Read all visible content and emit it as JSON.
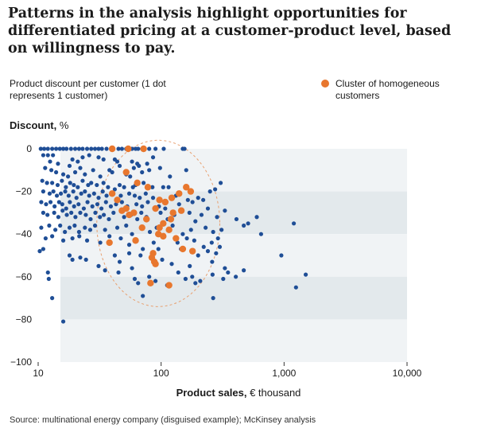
{
  "title": "Patterns in the analysis highlight opportunities for differentiated pricing at a customer-product level, based on willingness to pay.",
  "subtitle": "Product discount per customer (1 dot represents 1 customer)",
  "legend_label": "Cluster of homogeneous customers",
  "y_axis_title": "Discount,",
  "y_axis_unit": "%",
  "x_axis_title": "Product sales,",
  "x_axis_unit": "€ thousand",
  "source": "Source: multinational energy company (disguised example); McKinsey analysis",
  "colors": {
    "blue": "#1f4e96",
    "orange": "#e8772e",
    "band": "#e3e9ec",
    "band_light": "#f0f3f5",
    "ellipse": "#e8a070"
  },
  "chart_data": {
    "type": "scatter",
    "x_scale": "log",
    "xlim": [
      10,
      10000
    ],
    "ylim": [
      -100,
      0
    ],
    "x_ticks": [
      10,
      100,
      1000,
      10000
    ],
    "x_tick_labels": [
      "10",
      "100",
      "1,000",
      "10,000"
    ],
    "y_ticks": [
      0,
      -20,
      -40,
      -60,
      -80,
      -100
    ],
    "y_tick_labels": [
      "0",
      "−20",
      "−40",
      "−60",
      "−80",
      "−100"
    ],
    "series": [
      {
        "name": "Customers",
        "color": "#1f4e96",
        "points": [
          [
            10.5,
            0
          ],
          [
            11.2,
            0
          ],
          [
            12,
            0
          ],
          [
            13,
            0
          ],
          [
            14,
            0
          ],
          [
            15,
            0
          ],
          [
            16,
            0
          ],
          [
            17,
            0
          ],
          [
            18.5,
            0
          ],
          [
            20,
            0
          ],
          [
            21.5,
            0
          ],
          [
            23,
            0
          ],
          [
            25,
            0
          ],
          [
            27,
            0
          ],
          [
            29,
            0
          ],
          [
            31,
            0
          ],
          [
            33,
            0
          ],
          [
            36,
            0
          ],
          [
            45,
            0
          ],
          [
            48,
            0
          ],
          [
            52,
            0
          ],
          [
            55,
            0
          ],
          [
            58,
            0
          ],
          [
            62,
            0
          ],
          [
            65,
            0
          ],
          [
            70,
            0
          ],
          [
            80,
            0
          ],
          [
            90,
            0
          ],
          [
            105,
            0
          ],
          [
            150,
            0
          ],
          [
            155,
            0
          ],
          [
            11,
            -3
          ],
          [
            12,
            -3
          ],
          [
            13.2,
            -3
          ],
          [
            12.5,
            -6
          ],
          [
            14.5,
            -7
          ],
          [
            18,
            -8
          ],
          [
            21,
            -6
          ],
          [
            23,
            -4
          ],
          [
            19,
            -5
          ],
          [
            26,
            -3
          ],
          [
            31,
            -4
          ],
          [
            34,
            -5
          ],
          [
            42,
            -5
          ],
          [
            44,
            -6
          ],
          [
            58,
            -6
          ],
          [
            64,
            -7
          ],
          [
            66,
            -8
          ],
          [
            77,
            -7
          ],
          [
            86,
            -4
          ],
          [
            11.4,
            -9
          ],
          [
            12.8,
            -10
          ],
          [
            14,
            -11
          ],
          [
            16,
            -12
          ],
          [
            17.5,
            -13
          ],
          [
            20,
            -11
          ],
          [
            22,
            -9
          ],
          [
            24,
            -12
          ],
          [
            28,
            -10
          ],
          [
            32,
            -13
          ],
          [
            38,
            -10
          ],
          [
            40,
            -11
          ],
          [
            52,
            -12
          ],
          [
            56,
            -13
          ],
          [
            70,
            -11
          ],
          [
            98,
            -9
          ],
          [
            118,
            -13
          ],
          [
            160,
            -10
          ],
          [
            80,
            -10
          ],
          [
            60,
            -9
          ],
          [
            46,
            -8
          ],
          [
            10.8,
            -15
          ],
          [
            11.8,
            -16
          ],
          [
            13,
            -16
          ],
          [
            14.4,
            -17
          ],
          [
            15.6,
            -15
          ],
          [
            16.8,
            -18
          ],
          [
            18.2,
            -16
          ],
          [
            19.5,
            -17
          ],
          [
            21,
            -18
          ],
          [
            23,
            -15
          ],
          [
            25.5,
            -17
          ],
          [
            27,
            -16
          ],
          [
            30,
            -17
          ],
          [
            34,
            -16
          ],
          [
            37,
            -18
          ],
          [
            42,
            -19
          ],
          [
            46,
            -17
          ],
          [
            50,
            -18
          ],
          [
            59,
            -18
          ],
          [
            62,
            -17
          ],
          [
            72,
            -16
          ],
          [
            85,
            -18
          ],
          [
            104,
            -18
          ],
          [
            115,
            -18
          ],
          [
            11,
            -20
          ],
          [
            12.4,
            -21
          ],
          [
            13.3,
            -20
          ],
          [
            14.2,
            -22
          ],
          [
            15.3,
            -21
          ],
          [
            16.6,
            -20
          ],
          [
            17.7,
            -22
          ],
          [
            19.3,
            -20
          ],
          [
            20.5,
            -23
          ],
          [
            22.4,
            -21
          ],
          [
            24,
            -20
          ],
          [
            26,
            -22
          ],
          [
            28.5,
            -21
          ],
          [
            31,
            -23
          ],
          [
            33.5,
            -20
          ],
          [
            36,
            -22
          ],
          [
            40,
            -21
          ],
          [
            47,
            -22
          ],
          [
            55,
            -21
          ],
          [
            61,
            -22
          ],
          [
            67,
            -23
          ],
          [
            75,
            -21
          ],
          [
            86,
            -23
          ],
          [
            132,
            -22
          ],
          [
            10.6,
            -25
          ],
          [
            11.6,
            -26
          ],
          [
            12.6,
            -25
          ],
          [
            13.6,
            -27
          ],
          [
            14.8,
            -25
          ],
          [
            15.7,
            -26
          ],
          [
            16.9,
            -28
          ],
          [
            18.1,
            -25
          ],
          [
            19.6,
            -27
          ],
          [
            21.3,
            -26
          ],
          [
            23.5,
            -28
          ],
          [
            25.2,
            -25
          ],
          [
            27.6,
            -27
          ],
          [
            30.3,
            -26
          ],
          [
            32.7,
            -28
          ],
          [
            35.6,
            -25
          ],
          [
            39,
            -27
          ],
          [
            43,
            -26
          ],
          [
            48,
            -25
          ],
          [
            53,
            -27
          ],
          [
            63,
            -26
          ],
          [
            70,
            -27
          ],
          [
            78,
            -25
          ],
          [
            96,
            -27
          ],
          [
            108,
            -28
          ],
          [
            140,
            -26
          ],
          [
            165,
            -24
          ],
          [
            180,
            -25
          ],
          [
            200,
            -23
          ],
          [
            220,
            -24
          ],
          [
            250,
            -20
          ],
          [
            275,
            -19
          ],
          [
            305,
            -16
          ],
          [
            11,
            -30
          ],
          [
            11.9,
            -31
          ],
          [
            13.5,
            -30
          ],
          [
            14.6,
            -32
          ],
          [
            15.8,
            -29
          ],
          [
            17.1,
            -31
          ],
          [
            18.6,
            -30
          ],
          [
            20.1,
            -32
          ],
          [
            22,
            -30
          ],
          [
            24.4,
            -31
          ],
          [
            26.7,
            -33
          ],
          [
            29.2,
            -30
          ],
          [
            31.8,
            -32
          ],
          [
            34.2,
            -31
          ],
          [
            37.6,
            -33
          ],
          [
            41,
            -30
          ],
          [
            50,
            -32
          ],
          [
            57,
            -31
          ],
          [
            64,
            -33
          ],
          [
            69,
            -30
          ],
          [
            76,
            -32
          ],
          [
            99,
            -30
          ],
          [
            113,
            -33
          ],
          [
            128,
            -31
          ],
          [
            170,
            -30
          ],
          [
            190,
            -34
          ],
          [
            213,
            -31
          ],
          [
            240,
            -28
          ],
          [
            285,
            -32
          ],
          [
            330,
            -29
          ],
          [
            410,
            -33
          ],
          [
            600,
            -32
          ],
          [
            510,
            -35
          ],
          [
            10.6,
            -37
          ],
          [
            12.3,
            -36
          ],
          [
            13.8,
            -38
          ],
          [
            15.1,
            -36
          ],
          [
            16.5,
            -39
          ],
          [
            18,
            -37
          ],
          [
            19.8,
            -36
          ],
          [
            21.5,
            -39
          ],
          [
            24,
            -37
          ],
          [
            26.5,
            -38
          ],
          [
            29,
            -36
          ],
          [
            35,
            -38
          ],
          [
            44,
            -37
          ],
          [
            52,
            -36
          ],
          [
            58,
            -40
          ],
          [
            81,
            -39
          ],
          [
            92,
            -37
          ],
          [
            124,
            -36
          ],
          [
            150,
            -40
          ],
          [
            175,
            -38
          ],
          [
            230,
            -37
          ],
          [
            265,
            -39
          ],
          [
            310,
            -38
          ],
          [
            470,
            -36
          ],
          [
            650,
            -40
          ],
          [
            11.5,
            -42
          ],
          [
            13,
            -41
          ],
          [
            16,
            -43
          ],
          [
            19,
            -42
          ],
          [
            21.6,
            -41
          ],
          [
            25,
            -43
          ],
          [
            32,
            -44
          ],
          [
            38,
            -41
          ],
          [
            47,
            -42
          ],
          [
            55,
            -45
          ],
          [
            63,
            -43
          ],
          [
            71,
            -47
          ],
          [
            87,
            -44
          ],
          [
            136,
            -44
          ],
          [
            162,
            -42
          ],
          [
            186,
            -43
          ],
          [
            222,
            -46
          ],
          [
            258,
            -44
          ],
          [
            290,
            -42
          ],
          [
            1200,
            -35
          ],
          [
            10.3,
            -48
          ],
          [
            11,
            -47
          ],
          [
            42,
            -50
          ],
          [
            55,
            -49
          ],
          [
            68,
            -50
          ],
          [
            95,
            -47
          ],
          [
            145,
            -47
          ],
          [
            200,
            -50
          ],
          [
            240,
            -48
          ],
          [
            280,
            -49
          ],
          [
            300,
            -46
          ],
          [
            950,
            -50
          ],
          [
            18,
            -50
          ],
          [
            19,
            -52
          ],
          [
            22,
            -51
          ],
          [
            24.5,
            -52
          ],
          [
            31,
            -55
          ],
          [
            46,
            -53
          ],
          [
            58,
            -56
          ],
          [
            102,
            -52
          ],
          [
            122,
            -54
          ],
          [
            171,
            -55
          ],
          [
            260,
            -53
          ],
          [
            330,
            -56
          ],
          [
            12,
            -58
          ],
          [
            12.2,
            -61
          ],
          [
            35,
            -57
          ],
          [
            45,
            -58
          ],
          [
            61,
            -61
          ],
          [
            80,
            -60
          ],
          [
            90,
            -62
          ],
          [
            138,
            -58
          ],
          [
            158,
            -61
          ],
          [
            179,
            -60
          ],
          [
            208,
            -62
          ],
          [
            262,
            -59
          ],
          [
            320,
            -61
          ],
          [
            350,
            -58
          ],
          [
            405,
            -60
          ],
          [
            470,
            -57
          ],
          [
            1500,
            -59
          ],
          [
            65,
            -63
          ],
          [
            112,
            -64
          ],
          [
            190,
            -63
          ],
          [
            1250,
            -65
          ],
          [
            13,
            -70
          ],
          [
            71,
            -69
          ],
          [
            265,
            -70
          ],
          [
            16,
            -81
          ]
        ]
      },
      {
        "name": "Cluster of homogeneous customers",
        "color": "#e8772e",
        "points": [
          [
            40,
            0
          ],
          [
            54,
            0
          ],
          [
            72,
            0
          ],
          [
            52,
            -11
          ],
          [
            64,
            -16
          ],
          [
            78,
            -18
          ],
          [
            40,
            -21
          ],
          [
            44,
            -24
          ],
          [
            97,
            -24
          ],
          [
            160,
            -18
          ],
          [
            174,
            -20
          ],
          [
            140,
            -21
          ],
          [
            122,
            -23
          ],
          [
            108,
            -25
          ],
          [
            48,
            -29
          ],
          [
            52,
            -28
          ],
          [
            60,
            -30
          ],
          [
            90,
            -28
          ],
          [
            55,
            -31
          ],
          [
            125,
            -30
          ],
          [
            146,
            -29
          ],
          [
            76,
            -33
          ],
          [
            120,
            -33
          ],
          [
            104,
            -35
          ],
          [
            70,
            -37
          ],
          [
            97,
            -37
          ],
          [
            116,
            -38
          ],
          [
            95,
            -40
          ],
          [
            104,
            -41
          ],
          [
            132,
            -42
          ],
          [
            62,
            -43
          ],
          [
            38,
            -44
          ],
          [
            150,
            -47
          ],
          [
            180,
            -48
          ],
          [
            86,
            -49
          ],
          [
            84,
            -51
          ],
          [
            88,
            -53
          ],
          [
            90,
            -54
          ],
          [
            82,
            -63
          ],
          [
            116,
            -64
          ]
        ]
      }
    ],
    "annotation": "Dashed ellipse outlines the cluster of homogeneous customers"
  }
}
